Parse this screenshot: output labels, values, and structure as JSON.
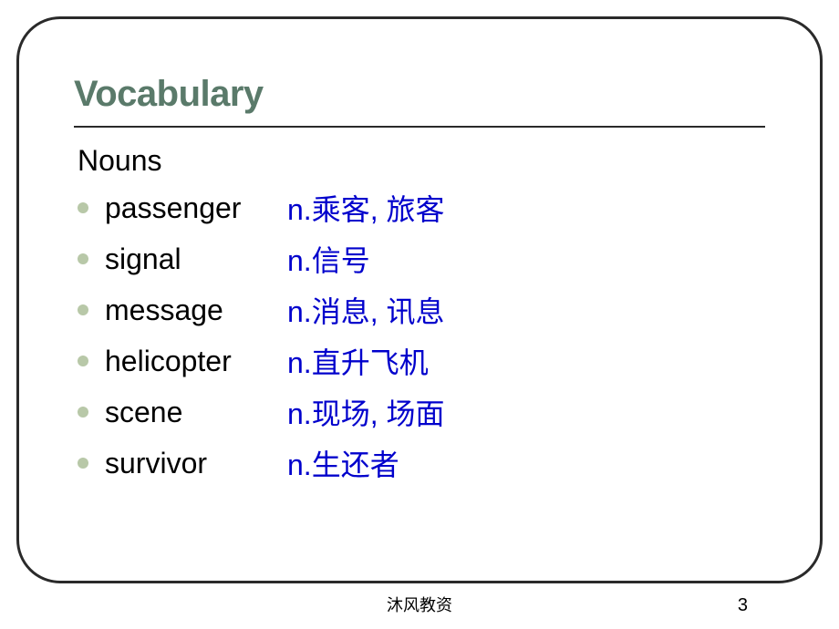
{
  "slide": {
    "title": "Vocabulary",
    "subtitle": "Nouns",
    "title_color": "#5a7a6a",
    "title_fontsize": 40,
    "subtitle_fontsize": 32,
    "body_fontsize": 32,
    "border_color": "#2a2a2a",
    "border_radius": 48,
    "bullet_color": "#b8c8a8",
    "word_color": "#000000",
    "definition_color": "#0000cc",
    "background_color": "#ffffff"
  },
  "vocab": [
    {
      "word": "passenger",
      "definition": "n.乘客, 旅客"
    },
    {
      "word": "signal",
      "definition": "n.信号"
    },
    {
      "word": "message",
      "definition": "n.消息, 讯息"
    },
    {
      "word": "helicopter",
      "definition": "n.直升飞机"
    },
    {
      "word": "scene",
      "definition": "n.现场, 场面"
    },
    {
      "word": "survivor",
      "definition": "n.生还者"
    }
  ],
  "footer": {
    "text": "沐风教资",
    "page_number": "3"
  }
}
